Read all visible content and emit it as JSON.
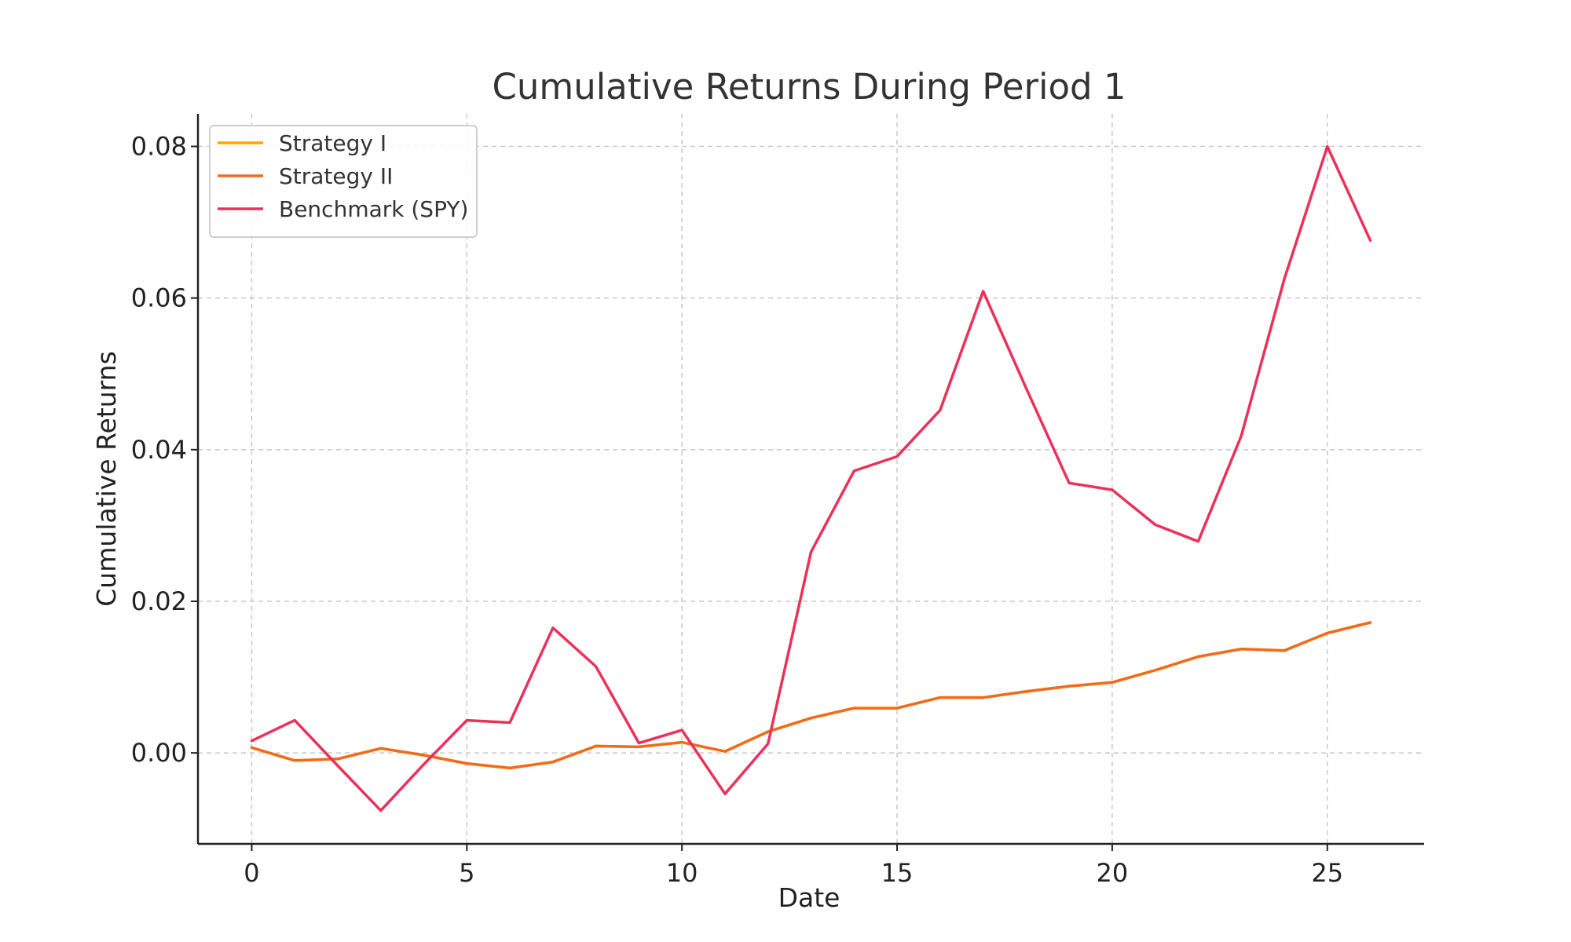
{
  "chart_data": {
    "type": "line",
    "title": "Cumulative Returns During Period 1",
    "xlabel": "Date",
    "ylabel": "Cumulative Returns",
    "xlim": [
      -1.25,
      27.25
    ],
    "ylim": [
      -0.012,
      0.0843
    ],
    "xticks": [
      0,
      5,
      10,
      15,
      20,
      25
    ],
    "xtick_labels": [
      "0",
      "5",
      "10",
      "15",
      "20",
      "25"
    ],
    "yticks": [
      0.0,
      0.02,
      0.04,
      0.06,
      0.08
    ],
    "ytick_labels": [
      "0.00",
      "0.02",
      "0.04",
      "0.06",
      "0.08"
    ],
    "grid": true,
    "legend_position": "upper-left",
    "x": [
      0,
      1,
      2,
      3,
      4,
      5,
      6,
      7,
      8,
      9,
      10,
      11,
      12,
      13,
      14,
      15,
      16,
      17,
      18,
      19,
      20,
      21,
      22,
      23,
      24,
      25,
      26
    ],
    "series": [
      {
        "name": "Strategy I",
        "color": "#FFA500",
        "values": [
          0.0007,
          -0.001,
          -0.0008,
          0.0006,
          -0.0003,
          -0.0014,
          -0.002,
          -0.0012,
          0.0009,
          0.0008,
          0.0014,
          0.0002,
          0.0028,
          0.0046,
          0.0059,
          0.0059,
          0.0073,
          0.0073,
          0.0081,
          0.0088,
          0.0093,
          0.0109,
          0.0127,
          0.0137,
          0.0135,
          0.0158,
          0.0172
        ]
      },
      {
        "name": "Strategy II",
        "color": "#F26B1D",
        "values": [
          0.0007,
          -0.001,
          -0.0008,
          0.0006,
          -0.0003,
          -0.0014,
          -0.002,
          -0.0012,
          0.0009,
          0.0008,
          0.0014,
          0.0002,
          0.0028,
          0.0046,
          0.0059,
          0.0059,
          0.0073,
          0.0073,
          0.0081,
          0.0088,
          0.0093,
          0.0109,
          0.0127,
          0.0137,
          0.0135,
          0.0158,
          0.0172
        ]
      },
      {
        "name": "Benchmark (SPY)",
        "color": "#EC3159",
        "values": [
          0.0016,
          0.0043,
          -0.0017,
          -0.0076,
          -0.0015,
          0.0043,
          0.004,
          0.0165,
          0.0114,
          0.0013,
          0.003,
          -0.0054,
          0.0012,
          0.0265,
          0.0372,
          0.0391,
          0.0452,
          0.0609,
          0.0481,
          0.0356,
          0.0347,
          0.0301,
          0.0279,
          0.0418,
          0.0625,
          0.08,
          0.0676
        ]
      }
    ]
  }
}
